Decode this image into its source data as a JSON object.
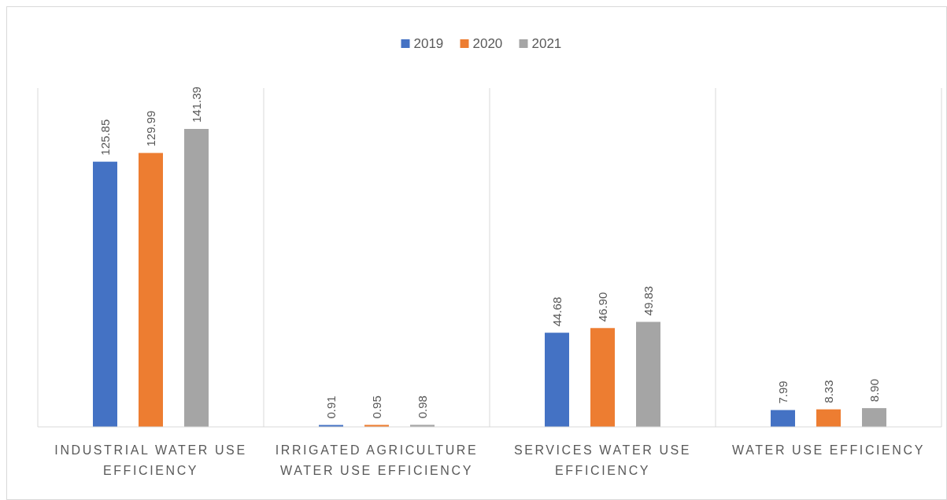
{
  "chart_data": {
    "type": "bar",
    "categories": [
      "INDUSTRIAL WATER USE EFFICIENCY",
      "IRRIGATED AGRICULTURE WATER USE EFFICIENCY",
      "SERVICES WATER USE EFFICIENCY",
      "WATER USE EFFICIENCY"
    ],
    "series": [
      {
        "name": "2019",
        "color": "#4472c4",
        "values": [
          125.85,
          0.91,
          44.68,
          7.99
        ],
        "value_labels": [
          "125.85",
          "0.91",
          "44.68",
          "7.99"
        ]
      },
      {
        "name": "2020",
        "color": "#ed7d31",
        "values": [
          129.99,
          0.95,
          46.9,
          8.33
        ],
        "value_labels": [
          "129.99",
          "0.95",
          "46.90",
          "8.33"
        ]
      },
      {
        "name": "2021",
        "color": "#a5a5a5",
        "values": [
          141.39,
          0.98,
          49.83,
          8.9
        ],
        "value_labels": [
          "141.39",
          "0.98",
          "49.83",
          "8.90"
        ]
      }
    ],
    "grid": "x",
    "legend": "top"
  }
}
